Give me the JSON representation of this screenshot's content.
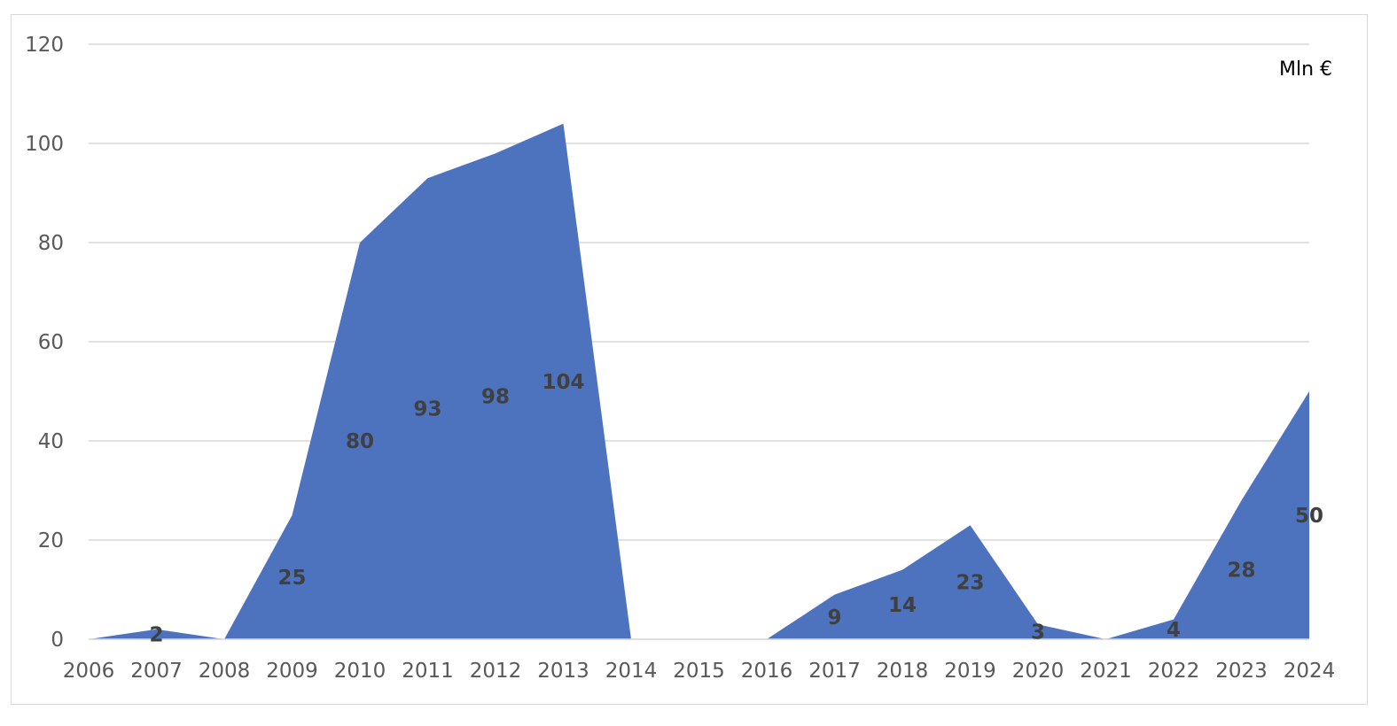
{
  "chart_data": {
    "type": "area",
    "x": [
      "2006",
      "2007",
      "2008",
      "2009",
      "2010",
      "2011",
      "2012",
      "2013",
      "2014",
      "2015",
      "2016",
      "2017",
      "2018",
      "2019",
      "2020",
      "2021",
      "2022",
      "2023",
      "2024"
    ],
    "values": [
      0,
      2,
      0,
      25,
      80,
      93,
      98,
      104,
      0,
      0,
      0,
      9,
      14,
      23,
      3,
      0,
      4,
      28,
      50
    ],
    "data_labels": [
      {
        "x": "2007",
        "text": "2"
      },
      {
        "x": "2009",
        "text": "25"
      },
      {
        "x": "2010",
        "text": "80"
      },
      {
        "x": "2011",
        "text": "93"
      },
      {
        "x": "2012",
        "text": "98"
      },
      {
        "x": "2013",
        "text": "104"
      },
      {
        "x": "2017",
        "text": "9"
      },
      {
        "x": "2018",
        "text": "14"
      },
      {
        "x": "2019",
        "text": "23"
      },
      {
        "x": "2020",
        "text": "3"
      },
      {
        "x": "2022",
        "text": "4"
      },
      {
        "x": "2023",
        "text": "28"
      },
      {
        "x": "2024",
        "text": "50"
      }
    ],
    "unit_label": "Mln €",
    "yticks": [
      0,
      20,
      40,
      60,
      80,
      100,
      120
    ],
    "ylim": [
      0,
      120
    ],
    "grid": true,
    "fill_color": "#4e73be",
    "grid_color": "#d9d9d9"
  }
}
